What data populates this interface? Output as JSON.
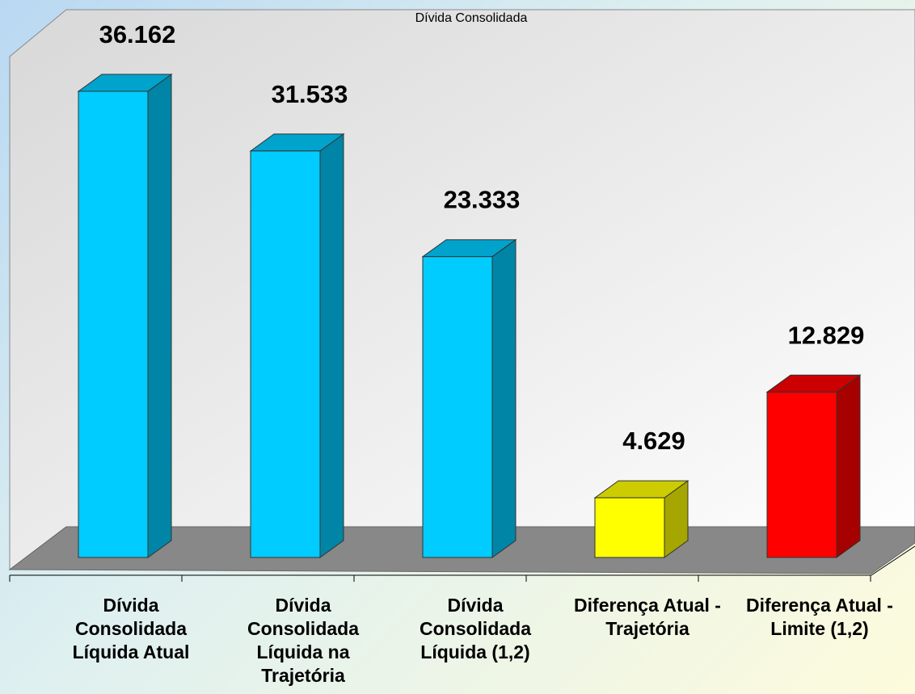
{
  "chart_data": {
    "type": "bar3d",
    "title": "Dívida Consolidada",
    "categories": [
      "Dívida Consolidada Líquida Atual",
      "Dívida Consolidada Líquida na Trajetória",
      "Dívida Consolidada Líquida (1,2)",
      "Diferença Atual - Trajetória",
      "Diferença Atual - Limite (1,2)"
    ],
    "values": [
      36162,
      31533,
      23333,
      4629,
      12829
    ],
    "value_labels": [
      "36.162",
      "31.533",
      "23.333",
      "4.629",
      "12.829"
    ],
    "colors": [
      "#00ccff",
      "#00ccff",
      "#00ccff",
      "#ffff00",
      "#ff0000"
    ]
  }
}
